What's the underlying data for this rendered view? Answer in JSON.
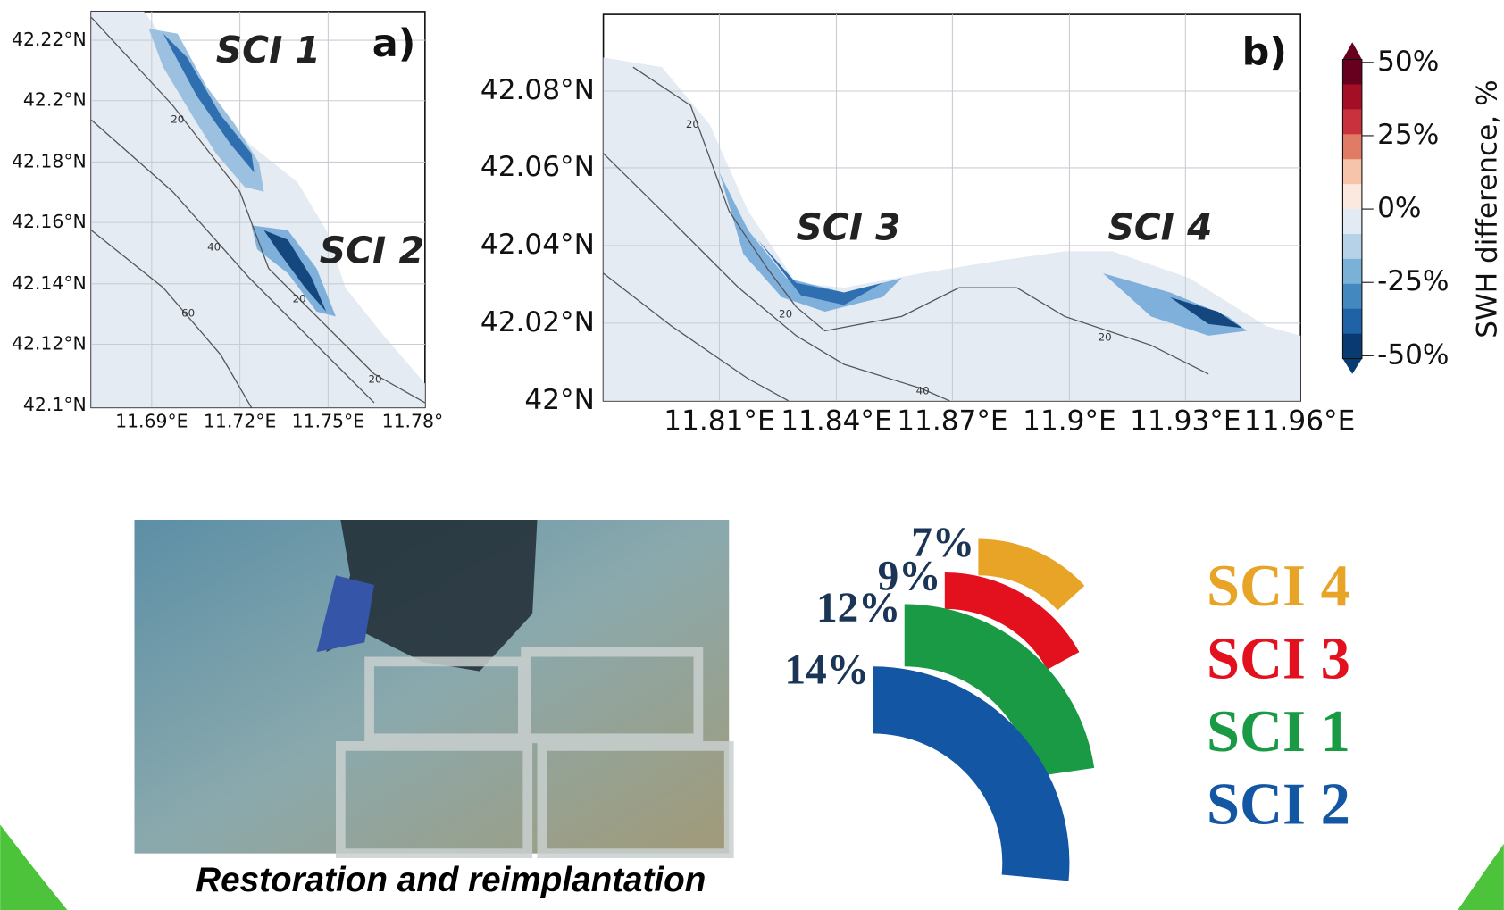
{
  "map_a": {
    "panel": "a)",
    "lat_labels": [
      "42.22°N",
      "42.2°N",
      "42.18°N",
      "42.16°N",
      "42.14°N",
      "42.12°N",
      "42.1°N"
    ],
    "lon_labels": [
      "11.69°E",
      "11.72°E",
      "11.75°E",
      "11.78°"
    ],
    "contour_labels": [
      "20",
      "40",
      "60",
      "20",
      "20"
    ],
    "sites": [
      "SCI 1",
      "SCI 2"
    ]
  },
  "map_b": {
    "panel": "b)",
    "lat_labels": [
      "42.08°N",
      "42.06°N",
      "42.04°N",
      "42.02°N",
      "42°N"
    ],
    "lon_labels": [
      "11.81°E",
      "11.84°E",
      "11.87°E",
      "11.9°E",
      "11.93°E",
      "11.96°E"
    ],
    "contour_labels": [
      "20",
      "20",
      "20",
      "40"
    ],
    "sites": [
      "SCI 3",
      "SCI 4"
    ]
  },
  "colorbar": {
    "label": "SWH difference, %",
    "ticks": [
      "50%",
      "25%",
      "0%",
      "-25%",
      "-50%"
    ]
  },
  "photo": {
    "caption": "Restoration and reimplantation"
  },
  "chart_data": {
    "type": "radial-bar",
    "categories": [
      "SCI 4",
      "SCI 3",
      "SCI 1",
      "SCI 2"
    ],
    "values": [
      7,
      9,
      12,
      14
    ],
    "value_labels": [
      "7%",
      "9%",
      "12%",
      "14%"
    ],
    "colors": [
      "#e8a426",
      "#e3101e",
      "#1a9a45",
      "#1356a3"
    ]
  }
}
